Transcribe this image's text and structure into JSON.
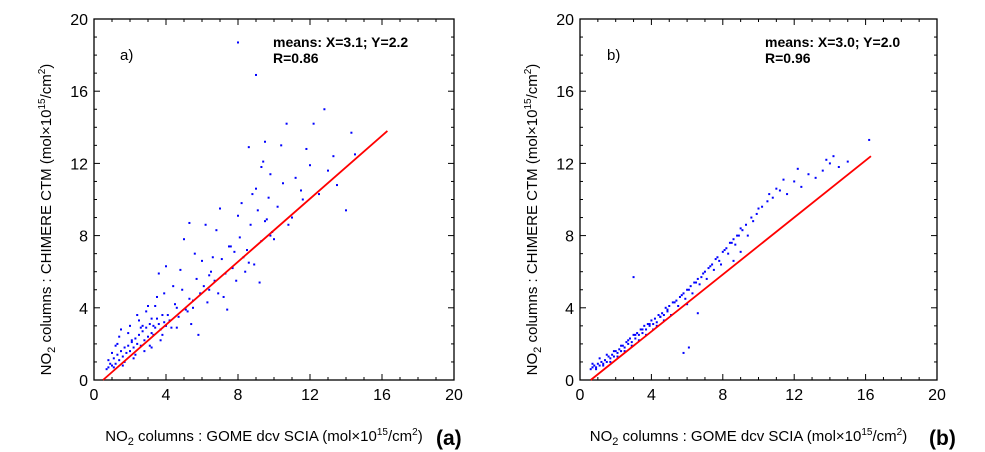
{
  "chart_data": [
    {
      "type": "scatter",
      "panel_label": "(a)",
      "inner_label": "a)",
      "annotation": {
        "means": "means: X=3.1; Y=2.2",
        "r": "R=0.86"
      },
      "xlabel": {
        "pre": "NO",
        "sub": "2",
        "mid": " columns : GOME dcv SCIA (mol×10",
        "sup": "15",
        "post": "/cm",
        "sup2": "2",
        "end": ")"
      },
      "ylabel": {
        "pre": "NO",
        "sub": "2",
        "mid": " columns : CHIMERE CTM (mol×10",
        "sup": "15",
        "post": "/cm",
        "sup2": "2",
        "end": ")"
      },
      "xlim": [
        0,
        20
      ],
      "ylim": [
        0,
        20
      ],
      "xticks": [
        "0",
        "4",
        "8",
        "12",
        "16",
        "20"
      ],
      "yticks": [
        "0",
        "4",
        "8",
        "12",
        "16",
        "20"
      ],
      "point_color": "#0000ff",
      "fit_color": "#ff0000",
      "fit_line": {
        "x": [
          0.5,
          16.3
        ],
        "y": [
          0.0,
          13.8
        ]
      },
      "points": {
        "x": [
          0.7,
          0.8,
          0.9,
          1.0,
          1.1,
          1.2,
          1.3,
          1.4,
          1.5,
          1.6,
          1.7,
          1.8,
          1.9,
          2.0,
          2.1,
          2.2,
          2.3,
          2.4,
          2.5,
          2.6,
          2.7,
          2.8,
          2.9,
          3.0,
          3.1,
          3.2,
          3.3,
          3.4,
          3.5,
          3.6,
          3.7,
          3.8,
          3.9,
          4.0,
          1.0,
          1.3,
          1.6,
          1.9,
          2.2,
          2.5,
          2.8,
          3.1,
          3.4,
          3.7,
          0.8,
          1.1,
          1.4,
          1.7,
          2.0,
          2.3,
          2.6,
          2.9,
          3.2,
          3.5,
          3.8,
          4.1,
          4.3,
          4.5,
          4.7,
          4.9,
          5.1,
          5.3,
          5.5,
          5.7,
          5.9,
          6.1,
          6.3,
          6.5,
          6.7,
          6.9,
          7.1,
          7.3,
          7.5,
          7.7,
          7.9,
          8.1,
          8.3,
          8.5,
          8.7,
          8.9,
          9.1,
          9.3,
          9.5,
          9.7,
          9.9,
          10.2,
          10.5,
          10.8,
          11.2,
          11.6,
          12.0,
          12.5,
          13.0,
          13.5,
          14.0,
          14.5,
          4.4,
          4.8,
          5.2,
          5.6,
          6.0,
          6.4,
          6.8,
          7.2,
          7.6,
          8.0,
          8.4,
          8.8,
          9.2,
          9.6,
          10.0,
          5.0,
          5.5,
          6.2,
          6.6,
          7.0,
          7.4,
          7.8,
          8.2,
          8.6,
          9.0,
          9.4,
          9.8,
          10.4,
          11.0,
          11.8,
          12.2,
          1.2,
          1.5,
          2.1,
          2.7,
          3.3,
          3.9,
          2.4,
          3.0,
          3.6,
          4.2,
          4.6,
          5.4,
          5.8,
          6.4,
          3.2,
          4.0,
          4.6,
          5.3,
          8.0,
          9.0,
          9.8,
          12.8,
          13.3,
          14.3,
          10.7,
          11.5,
          9.5,
          8.6,
          9.3
        ],
        "y": [
          0.6,
          0.7,
          0.9,
          0.8,
          1.2,
          0.9,
          1.4,
          1.1,
          1.6,
          1.3,
          1.8,
          1.5,
          1.9,
          1.6,
          2.1,
          1.8,
          2.3,
          2.0,
          2.5,
          1.9,
          2.7,
          2.2,
          2.9,
          2.4,
          3.1,
          2.6,
          3.0,
          2.9,
          3.4,
          3.1,
          2.8,
          3.6,
          3.2,
          3.0,
          1.5,
          2.0,
          0.8,
          2.6,
          1.2,
          3.3,
          1.6,
          1.9,
          4.1,
          2.2,
          1.1,
          0.7,
          2.4,
          1.0,
          3.0,
          1.4,
          2.9,
          3.8,
          1.8,
          4.6,
          2.5,
          3.6,
          2.9,
          4.2,
          3.5,
          5.0,
          3.9,
          4.5,
          4.0,
          5.6,
          4.8,
          5.2,
          4.3,
          6.0,
          5.5,
          4.8,
          6.7,
          5.9,
          7.4,
          6.2,
          5.5,
          7.9,
          6.8,
          7.2,
          8.6,
          6.4,
          9.4,
          7.7,
          8.8,
          10.1,
          8.2,
          9.6,
          10.9,
          8.6,
          11.2,
          10.0,
          11.9,
          10.3,
          11.6,
          10.8,
          9.4,
          12.5,
          5.2,
          6.1,
          3.8,
          7.0,
          6.6,
          5.0,
          8.3,
          4.6,
          7.4,
          9.1,
          6.0,
          10.3,
          5.4,
          8.9,
          7.8,
          7.8,
          4.4,
          8.6,
          6.8,
          9.5,
          3.9,
          7.1,
          9.8,
          6.5,
          10.6,
          12.1,
          8.0,
          13.0,
          9.0,
          12.8,
          14.2,
          1.9,
          2.8,
          2.2,
          3.0,
          2.5,
          4.8,
          3.6,
          4.1,
          5.9,
          3.3,
          4.0,
          3.1,
          2.5,
          5.8,
          3.4,
          6.3,
          2.9,
          8.7,
          18.7,
          16.9,
          11.4,
          15.0,
          12.4,
          13.7,
          14.2,
          10.5,
          13.2,
          12.9,
          11.8
        ]
      }
    },
    {
      "type": "scatter",
      "panel_label": "(b)",
      "inner_label": "b)",
      "annotation": {
        "means": "means: X=3.0; Y=2.0",
        "r": "R=0.96"
      },
      "xlabel": {
        "pre": "NO",
        "sub": "2",
        "mid": " columns : GOME dcv SCIA (mol×10",
        "sup": "15",
        "post": "/cm",
        "sup2": "2",
        "end": ")"
      },
      "ylabel": {
        "pre": "NO",
        "sub": "2",
        "mid": " columns : CHIMERE CTM (mol×10",
        "sup": "15",
        "post": "/cm",
        "sup2": "2",
        "end": ")"
      },
      "xlim": [
        0,
        20
      ],
      "ylim": [
        0,
        20
      ],
      "xticks": [
        "0",
        "4",
        "8",
        "12",
        "16",
        "20"
      ],
      "yticks": [
        "0",
        "4",
        "8",
        "12",
        "16",
        "20"
      ],
      "point_color": "#0000ff",
      "fit_color": "#ff0000",
      "fit_line": {
        "x": [
          0.6,
          16.3
        ],
        "y": [
          0.0,
          12.4
        ]
      },
      "points": {
        "x": [
          0.6,
          0.7,
          0.8,
          0.9,
          1.0,
          1.1,
          1.2,
          1.3,
          1.4,
          1.5,
          1.6,
          1.7,
          1.8,
          1.9,
          2.0,
          2.1,
          2.2,
          2.3,
          2.4,
          2.5,
          2.6,
          2.7,
          2.8,
          2.9,
          3.0,
          3.1,
          3.2,
          3.3,
          3.4,
          3.5,
          3.6,
          3.7,
          3.8,
          3.9,
          4.0,
          4.1,
          4.2,
          4.3,
          4.4,
          4.5,
          4.6,
          4.7,
          4.8,
          4.9,
          5.0,
          5.2,
          5.4,
          5.6,
          5.8,
          6.0,
          6.2,
          6.4,
          6.6,
          6.8,
          7.0,
          7.2,
          7.4,
          7.6,
          7.8,
          8.0,
          8.2,
          8.4,
          8.6,
          8.8,
          9.0,
          9.3,
          9.6,
          9.9,
          10.2,
          10.5,
          10.8,
          11.2,
          11.6,
          12.0,
          12.4,
          12.8,
          13.2,
          13.6,
          14.0,
          14.5,
          15.0,
          16.2,
          0.7,
          0.9,
          1.1,
          1.3,
          1.5,
          1.7,
          1.9,
          2.1,
          2.3,
          2.5,
          2.7,
          2.9,
          3.1,
          3.3,
          3.5,
          3.7,
          3.9,
          4.1,
          4.3,
          4.5,
          4.7,
          4.9,
          5.1,
          5.3,
          5.5,
          5.7,
          5.9,
          6.1,
          6.3,
          6.5,
          6.7,
          6.9,
          7.1,
          7.3,
          7.5,
          7.7,
          7.9,
          8.1,
          8.3,
          8.5,
          8.7,
          8.9,
          9.1,
          9.4,
          9.7,
          10.0,
          10.6,
          11.0,
          11.4,
          12.2,
          13.8,
          14.2,
          6.0,
          6.6,
          6.1,
          3.0,
          5.8,
          9.0,
          8.6
        ],
        "y": [
          0.6,
          0.7,
          0.8,
          0.7,
          0.9,
          0.8,
          1.0,
          0.9,
          1.1,
          1.0,
          1.3,
          1.2,
          1.4,
          1.3,
          1.6,
          1.5,
          1.7,
          1.6,
          1.9,
          1.8,
          2.1,
          2.0,
          2.3,
          2.1,
          2.5,
          2.3,
          2.6,
          2.5,
          2.8,
          2.6,
          3.0,
          2.8,
          3.1,
          3.0,
          3.3,
          3.1,
          3.4,
          3.2,
          3.6,
          3.5,
          3.7,
          3.6,
          4.0,
          3.8,
          4.1,
          4.3,
          4.4,
          4.6,
          4.8,
          5.0,
          5.2,
          5.4,
          5.6,
          5.7,
          6.0,
          6.2,
          6.4,
          6.7,
          6.6,
          7.1,
          7.3,
          7.6,
          7.8,
          8.0,
          8.4,
          8.6,
          9.0,
          9.2,
          9.6,
          9.9,
          10.1,
          10.5,
          10.3,
          11.0,
          10.7,
          11.4,
          11.2,
          11.6,
          12.0,
          11.8,
          12.1,
          13.3,
          0.9,
          0.6,
          1.2,
          0.8,
          1.4,
          1.0,
          1.6,
          1.3,
          1.9,
          1.6,
          2.2,
          1.9,
          2.5,
          2.2,
          2.8,
          2.5,
          3.1,
          2.8,
          3.0,
          3.5,
          3.3,
          3.9,
          3.6,
          4.3,
          4.1,
          4.7,
          4.5,
          5.0,
          4.8,
          5.4,
          5.3,
          5.9,
          5.6,
          6.3,
          6.1,
          6.8,
          6.4,
          7.2,
          7.0,
          7.6,
          7.5,
          8.0,
          8.3,
          8.0,
          8.8,
          9.5,
          10.3,
          10.6,
          11.1,
          11.7,
          12.2,
          12.4,
          4.2,
          3.7,
          1.8,
          5.7,
          1.5,
          7.1,
          6.6
        ]
      }
    }
  ]
}
